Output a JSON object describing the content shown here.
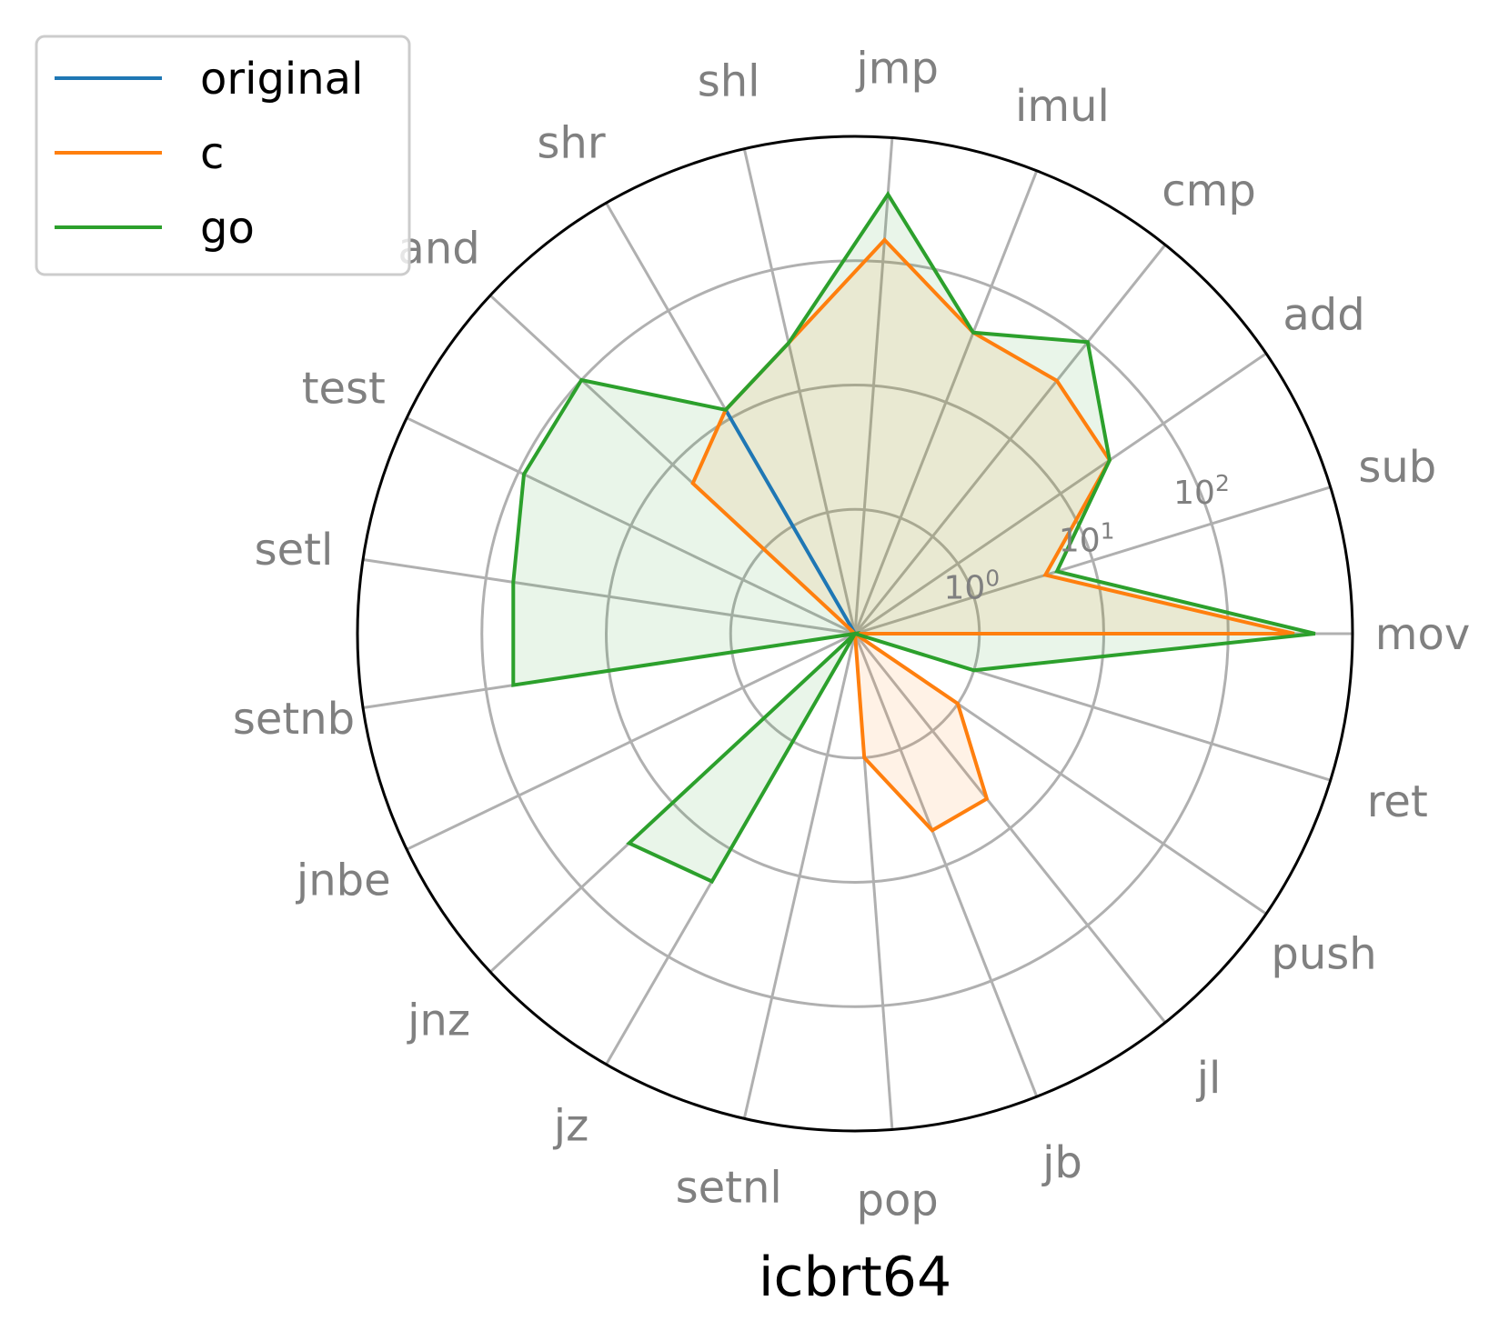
{
  "chart_data": {
    "type": "radar",
    "title": "icbrt64",
    "categories": [
      "mov",
      "sub",
      "add",
      "cmp",
      "imul",
      "jmp",
      "shl",
      "shr",
      "and",
      "test",
      "setl",
      "setnb",
      "jnbe",
      "jnz",
      "jz",
      "setnl",
      "pop",
      "jb",
      "jl",
      "push",
      "ret"
    ],
    "radial_scale": "log",
    "radial_range": [
      0.1,
      1000
    ],
    "radial_ticks": [
      {
        "value": 1,
        "base": "10",
        "exp": "0"
      },
      {
        "value": 10,
        "base": "10",
        "exp": "1"
      },
      {
        "value": 100,
        "base": "10",
        "exp": "2"
      }
    ],
    "grid": true,
    "legend_position": "top-left",
    "series": [
      {
        "name": "original",
        "color": "#1f77b4",
        "fill": false,
        "values": [
          0.1,
          0.1,
          0.1,
          0.1,
          0.1,
          0.1,
          0.1,
          12,
          0.1,
          0.1,
          0.1,
          0.1,
          0.1,
          0.1,
          0.1,
          0.1,
          0.1,
          0.1,
          0.1,
          0.1,
          0.1
        ]
      },
      {
        "name": "c",
        "color": "#ff7f0e",
        "fill": true,
        "values": [
          340,
          4,
          30,
          40,
          40,
          150,
          25,
          12,
          6,
          0.1,
          0.1,
          0.1,
          0.1,
          0.1,
          0.1,
          0.1,
          1,
          5,
          5,
          1,
          0.1
        ]
      },
      {
        "name": "go",
        "color": "#2ca02c",
        "fill": true,
        "values": [
          500,
          5,
          30,
          100,
          40,
          350,
          25,
          12,
          100,
          90,
          60,
          60,
          0.1,
          30,
          20,
          0.1,
          0.1,
          0.1,
          0.1,
          0.1,
          1
        ]
      }
    ]
  }
}
